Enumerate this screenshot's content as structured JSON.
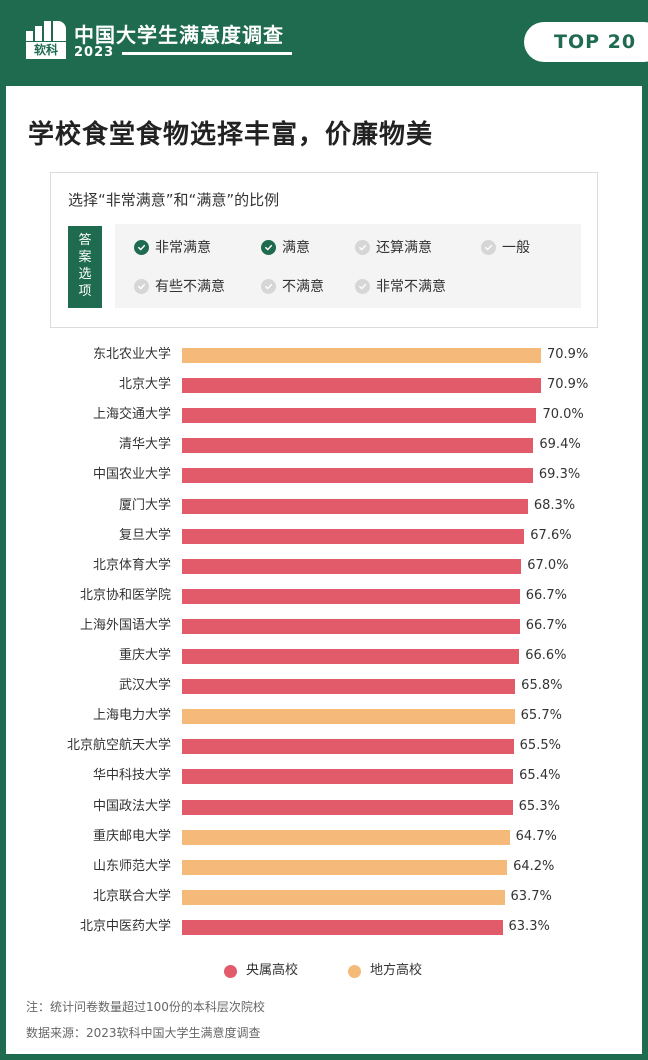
{
  "header": {
    "logo_text": "软科",
    "title": "中国大学生满意度调查",
    "year": "2023",
    "badge": "TOP 20"
  },
  "main_title": "学校食堂食物选择丰富，价廉物美",
  "filter": {
    "title": "选择“非常满意”和“满意”的比例",
    "tag": "答案选项",
    "options": [
      {
        "label": "非常满意",
        "checked": true
      },
      {
        "label": "满意",
        "checked": true
      },
      {
        "label": "还算满意",
        "checked": false
      },
      {
        "label": "一般",
        "checked": false
      },
      {
        "label": "有些不满意",
        "checked": false
      },
      {
        "label": "不满意",
        "checked": false
      },
      {
        "label": "非常不满意",
        "checked": false
      }
    ]
  },
  "colors": {
    "brand_green": "#1e6b50",
    "central": "#e25b6b",
    "local": "#f5b97a"
  },
  "chart_data": {
    "type": "bar",
    "orientation": "horizontal",
    "unit": "%",
    "xlim": [
      0,
      70.9
    ],
    "categories": [
      "东北农业大学",
      "北京大学",
      "上海交通大学",
      "清华大学",
      "中国农业大学",
      "厦门大学",
      "复旦大学",
      "北京体育大学",
      "北京协和医学院",
      "上海外国语大学",
      "重庆大学",
      "武汉大学",
      "上海电力大学",
      "北京航空航天大学",
      "华中科技大学",
      "中国政法大学",
      "重庆邮电大学",
      "山东师范大学",
      "北京联合大学",
      "北京中医药大学"
    ],
    "values": [
      70.9,
      70.9,
      70.0,
      69.4,
      69.3,
      68.3,
      67.6,
      67.0,
      66.7,
      66.7,
      66.6,
      65.8,
      65.7,
      65.5,
      65.4,
      65.3,
      64.7,
      64.2,
      63.7,
      63.3
    ],
    "value_labels": [
      "70.9%",
      "70.9%",
      "70.0%",
      "69.4%",
      "69.3%",
      "68.3%",
      "67.6%",
      "67.0%",
      "66.7%",
      "66.7%",
      "66.6%",
      "65.8%",
      "65.7%",
      "65.5%",
      "65.4%",
      "65.3%",
      "64.7%",
      "64.2%",
      "63.7%",
      "63.3%"
    ],
    "groups": [
      "local",
      "central",
      "central",
      "central",
      "central",
      "central",
      "central",
      "central",
      "central",
      "central",
      "central",
      "central",
      "local",
      "central",
      "central",
      "central",
      "local",
      "local",
      "local",
      "central"
    ],
    "legend": [
      {
        "key": "central",
        "name": "央属高校"
      },
      {
        "key": "local",
        "name": "地方高校"
      }
    ],
    "legend_placement": "bottom-center",
    "grid": false
  },
  "notes": {
    "note": "注：统计问卷数量超过100份的本科层次院校",
    "source": "数据来源：2023软科中国大学生满意度调查"
  }
}
